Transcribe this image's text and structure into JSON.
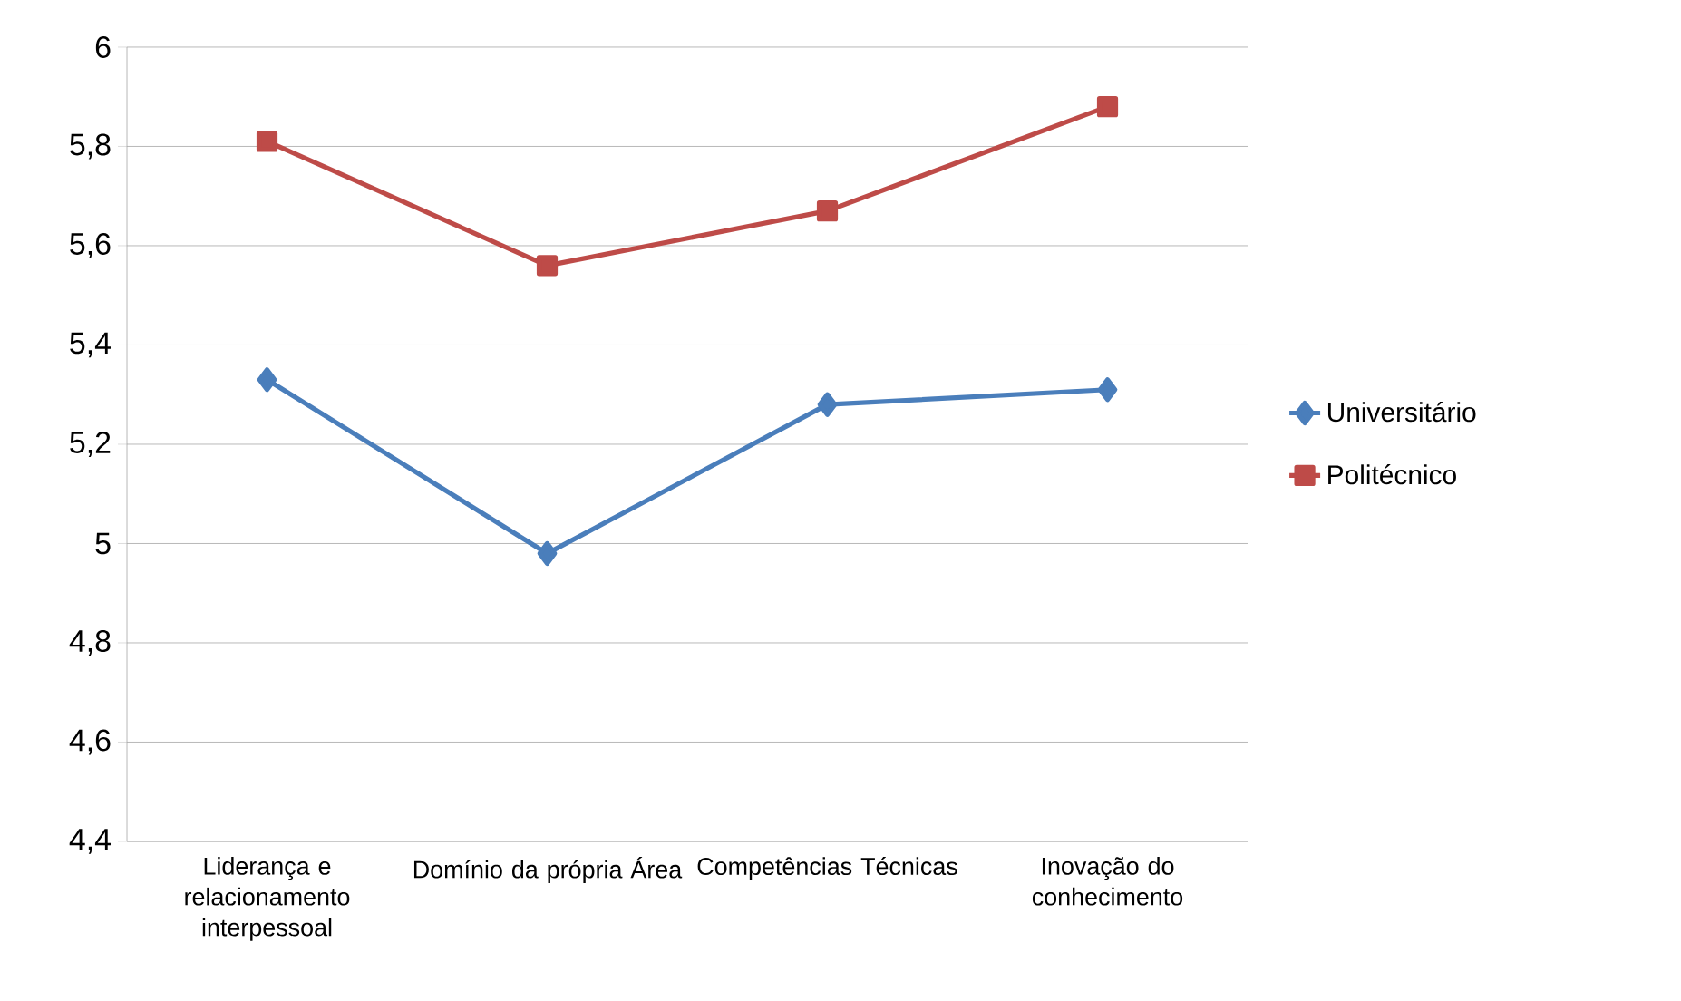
{
  "chart_data": {
    "type": "line",
    "categories": [
      "Liderança e relacionamento interpessoal",
      "Domínio da própria Área",
      "Competências Técnicas",
      "Inovação do conhecimento"
    ],
    "series": [
      {
        "name": "Universitário",
        "color": "#4a7ebb",
        "marker": "diamond",
        "values": [
          5.33,
          4.98,
          5.28,
          5.31
        ]
      },
      {
        "name": "Politécnico",
        "color": "#be4b48",
        "marker": "square",
        "values": [
          5.81,
          5.56,
          5.67,
          5.88
        ]
      }
    ],
    "ylim": [
      4.4,
      6
    ],
    "yticks": [
      {
        "value": 4.4,
        "label": "4,4"
      },
      {
        "value": 4.6,
        "label": "4,6"
      },
      {
        "value": 4.8,
        "label": "4,8"
      },
      5,
      {
        "value": 5.2,
        "label": "5,2"
      },
      {
        "value": 5.4,
        "label": "5,4"
      },
      {
        "value": 5.6,
        "label": "5,6"
      },
      {
        "value": 5.8,
        "label": "5,8"
      },
      6
    ],
    "grid": "y",
    "legend": "right"
  }
}
